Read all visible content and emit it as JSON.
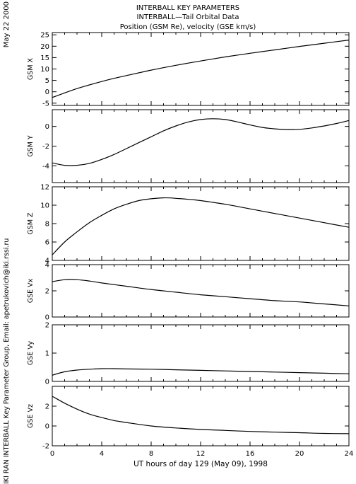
{
  "header": {
    "title1": "INTERBALL KEY PARAMETERS",
    "title2": "INTERBALL—Tail Orbital Data",
    "title3": "Position (GSM Re), velocity (GSE km/s)",
    "date": "May 22 2000",
    "credit": "IKI RAN INTERBALL Key Parameter Group, Email: apetrukovich@iki.rssi.ru"
  },
  "chart_data": {
    "type": "line",
    "xlabel": "UT hours of day 129 (May 09), 1998",
    "xlim": [
      0,
      24
    ],
    "xticks": [
      0,
      4,
      8,
      12,
      16,
      20,
      24
    ],
    "panels": [
      {
        "ylabel": "GSM X",
        "ylim": [
          -6,
          26
        ],
        "yticks": [
          -5,
          0,
          5,
          10,
          15,
          20,
          25
        ],
        "x": [
          0,
          1,
          2,
          3,
          4,
          5,
          6,
          8,
          10,
          12,
          14,
          16,
          18,
          20,
          22,
          24
        ],
        "values": [
          -2.5,
          -0.5,
          1.4,
          3.0,
          4.5,
          5.9,
          7.1,
          9.5,
          11.6,
          13.5,
          15.3,
          16.9,
          18.4,
          19.9,
          21.3,
          22.7
        ]
      },
      {
        "ylabel": "GSM Y",
        "ylim": [
          -5.7,
          1.7
        ],
        "yticks": [
          -4,
          -2,
          0
        ],
        "x": [
          0,
          1,
          2,
          3,
          4,
          5,
          6,
          7,
          8,
          9,
          10,
          11,
          12,
          13,
          14,
          15,
          16,
          17,
          18,
          19,
          20,
          21,
          22,
          23,
          24
        ],
        "values": [
          -3.7,
          -3.95,
          -3.95,
          -3.75,
          -3.35,
          -2.85,
          -2.25,
          -1.65,
          -1.05,
          -0.45,
          0.05,
          0.45,
          0.7,
          0.78,
          0.7,
          0.45,
          0.15,
          -0.1,
          -0.25,
          -0.32,
          -0.3,
          -0.15,
          0.05,
          0.3,
          0.6
        ]
      },
      {
        "ylabel": "GSM Z",
        "ylim": [
          4,
          12
        ],
        "yticks": [
          4,
          6,
          8,
          10,
          12
        ],
        "x": [
          0,
          1,
          2,
          3,
          4,
          5,
          6,
          7,
          8,
          9,
          10,
          12,
          14,
          16,
          18,
          20,
          22,
          24
        ],
        "values": [
          4.6,
          6.0,
          7.1,
          8.1,
          8.9,
          9.6,
          10.1,
          10.5,
          10.7,
          10.8,
          10.75,
          10.5,
          10.1,
          9.6,
          9.1,
          8.6,
          8.1,
          7.6
        ]
      },
      {
        "ylabel": "GSE Vx",
        "ylim": [
          0,
          4
        ],
        "yticks": [
          0,
          2,
          4
        ],
        "x": [
          0,
          1,
          2,
          3,
          4,
          6,
          8,
          10,
          12,
          14,
          16,
          18,
          20,
          22,
          24
        ],
        "values": [
          2.7,
          2.85,
          2.85,
          2.75,
          2.6,
          2.35,
          2.1,
          1.9,
          1.7,
          1.55,
          1.4,
          1.25,
          1.15,
          1.0,
          0.85
        ]
      },
      {
        "ylabel": "GSE Vy",
        "ylim": [
          0,
          2
        ],
        "yticks": [
          0,
          1,
          2
        ],
        "x": [
          0,
          1,
          2,
          3,
          4,
          5,
          6,
          8,
          10,
          12,
          14,
          16,
          18,
          20,
          22,
          24
        ],
        "values": [
          0.22,
          0.34,
          0.4,
          0.43,
          0.45,
          0.45,
          0.44,
          0.43,
          0.41,
          0.39,
          0.37,
          0.35,
          0.33,
          0.31,
          0.29,
          0.27
        ]
      },
      {
        "ylabel": "GSE Vz",
        "ylim": [
          -2,
          4
        ],
        "yticks": [
          -2,
          0,
          2
        ],
        "x": [
          0,
          1,
          2,
          3,
          4,
          5,
          6,
          8,
          10,
          12,
          14,
          16,
          18,
          20,
          22,
          24
        ],
        "values": [
          3.0,
          2.3,
          1.7,
          1.2,
          0.85,
          0.55,
          0.35,
          0.0,
          -0.2,
          -0.35,
          -0.45,
          -0.55,
          -0.62,
          -0.68,
          -0.75,
          -0.78
        ]
      }
    ]
  }
}
